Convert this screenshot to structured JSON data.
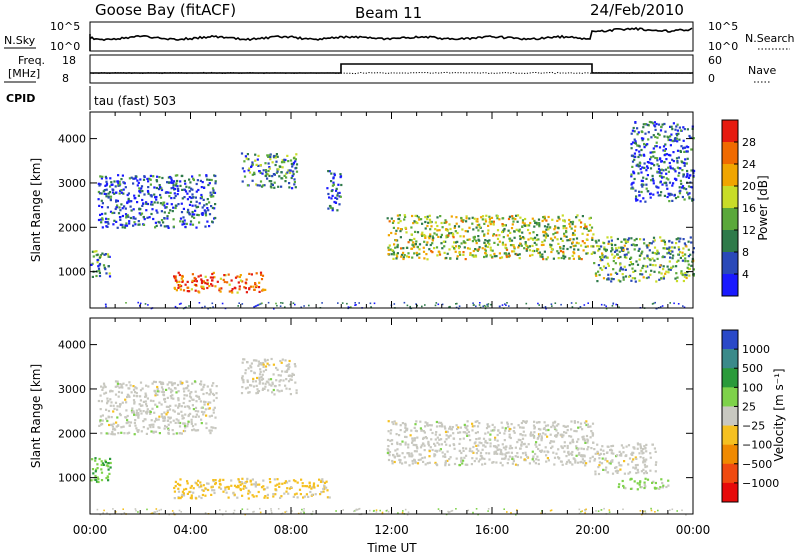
{
  "header": {
    "station": "Goose Bay (fitACF)",
    "beam": "Beam 11",
    "date": "24/Feb/2010"
  },
  "top_panels": {
    "nsky_label": "N.Sky",
    "nsky_ticks": [
      "10^5",
      "10^0"
    ],
    "nsearch_label": "N.Search",
    "nsearch_ticks": [
      "10^5",
      "10^0"
    ],
    "freq_label_1": "Freq.",
    "freq_label_2": "[MHz]",
    "freq_ticks": [
      "18",
      "8"
    ],
    "nave_label": "Nave",
    "nave_ticks": [
      "60",
      "0"
    ],
    "cpid_label": "CPID",
    "cpid_text": "tau (fast) 503"
  },
  "power_colorbar": {
    "label": "Power [dB]",
    "ticks": [
      "28",
      "24",
      "20",
      "16",
      "12",
      "8",
      "4"
    ],
    "colors": [
      "#1a1aff",
      "#2a49b8",
      "#2f7a4a",
      "#5aa83a",
      "#c8dc28",
      "#f0a500",
      "#f06a00",
      "#e61b10"
    ]
  },
  "velocity_colorbar": {
    "label": "Velocity [m s⁻¹]",
    "ticks": [
      "1000",
      "500",
      "100",
      "25",
      "−25",
      "−100",
      "−500",
      "−1000"
    ],
    "colors": [
      "#2a49c8",
      "#3a8a8a",
      "#2a9a3a",
      "#7ed24a",
      "#c8c8c0",
      "#f5c020",
      "#f08a00",
      "#f04a10",
      "#e60a0a"
    ]
  },
  "chart_data": {
    "type": "heatmap",
    "title": "",
    "xlabel": "Time UT",
    "ylabel": "Slant Range [km]",
    "x_ticks": [
      "00:00",
      "04:00",
      "08:00",
      "12:00",
      "16:00",
      "20:00",
      "00:00"
    ],
    "y_ticks": [
      1000,
      2000,
      3000,
      4000
    ],
    "xlim": [
      0,
      24
    ],
    "ylim": [
      180,
      4600
    ],
    "panels": [
      "Power [dB]",
      "Velocity [m s⁻¹]"
    ],
    "power_scale": [
      0,
      30
    ],
    "velocity_scale": [
      -1000,
      1000
    ],
    "series": [
      {
        "name": "Power [dB]",
        "regions": [
          {
            "t0": 0.0,
            "t1": 0.8,
            "r0": 900,
            "r1": 1500,
            "value": 10
          },
          {
            "t0": 0.3,
            "t1": 5.0,
            "r0": 2000,
            "r1": 3200,
            "value": 6
          },
          {
            "t0": 3.3,
            "t1": 7.0,
            "r0": 550,
            "r1": 1000,
            "value": 26
          },
          {
            "t0": 6.0,
            "t1": 8.2,
            "r0": 2900,
            "r1": 3700,
            "value": 10
          },
          {
            "t0": 9.4,
            "t1": 10.0,
            "r0": 2400,
            "r1": 3300,
            "value": 5
          },
          {
            "t0": 11.8,
            "t1": 20.0,
            "r0": 1300,
            "r1": 2300,
            "value": 16
          },
          {
            "t0": 20.0,
            "t1": 24.0,
            "r0": 800,
            "r1": 1800,
            "value": 12
          },
          {
            "t0": 21.5,
            "t1": 24.0,
            "r0": 2600,
            "r1": 4400,
            "value": 6
          }
        ]
      },
      {
        "name": "Velocity [m s⁻¹]",
        "regions": [
          {
            "t0": 0.0,
            "t1": 0.8,
            "r0": 900,
            "r1": 1500,
            "value": 300
          },
          {
            "t0": 0.3,
            "t1": 5.0,
            "r0": 2000,
            "r1": 3200,
            "value": 0
          },
          {
            "t0": 3.3,
            "t1": 9.5,
            "r0": 550,
            "r1": 1000,
            "value": -150
          },
          {
            "t0": 6.0,
            "t1": 8.2,
            "r0": 2900,
            "r1": 3700,
            "value": 0
          },
          {
            "t0": 11.8,
            "t1": 20.0,
            "r0": 1300,
            "r1": 2300,
            "value": 0
          },
          {
            "t0": 20.0,
            "t1": 22.5,
            "r0": 1100,
            "r1": 1800,
            "value": 0
          },
          {
            "t0": 21.0,
            "t1": 23.0,
            "r0": 750,
            "r1": 1000,
            "value": 150
          }
        ]
      }
    ]
  }
}
